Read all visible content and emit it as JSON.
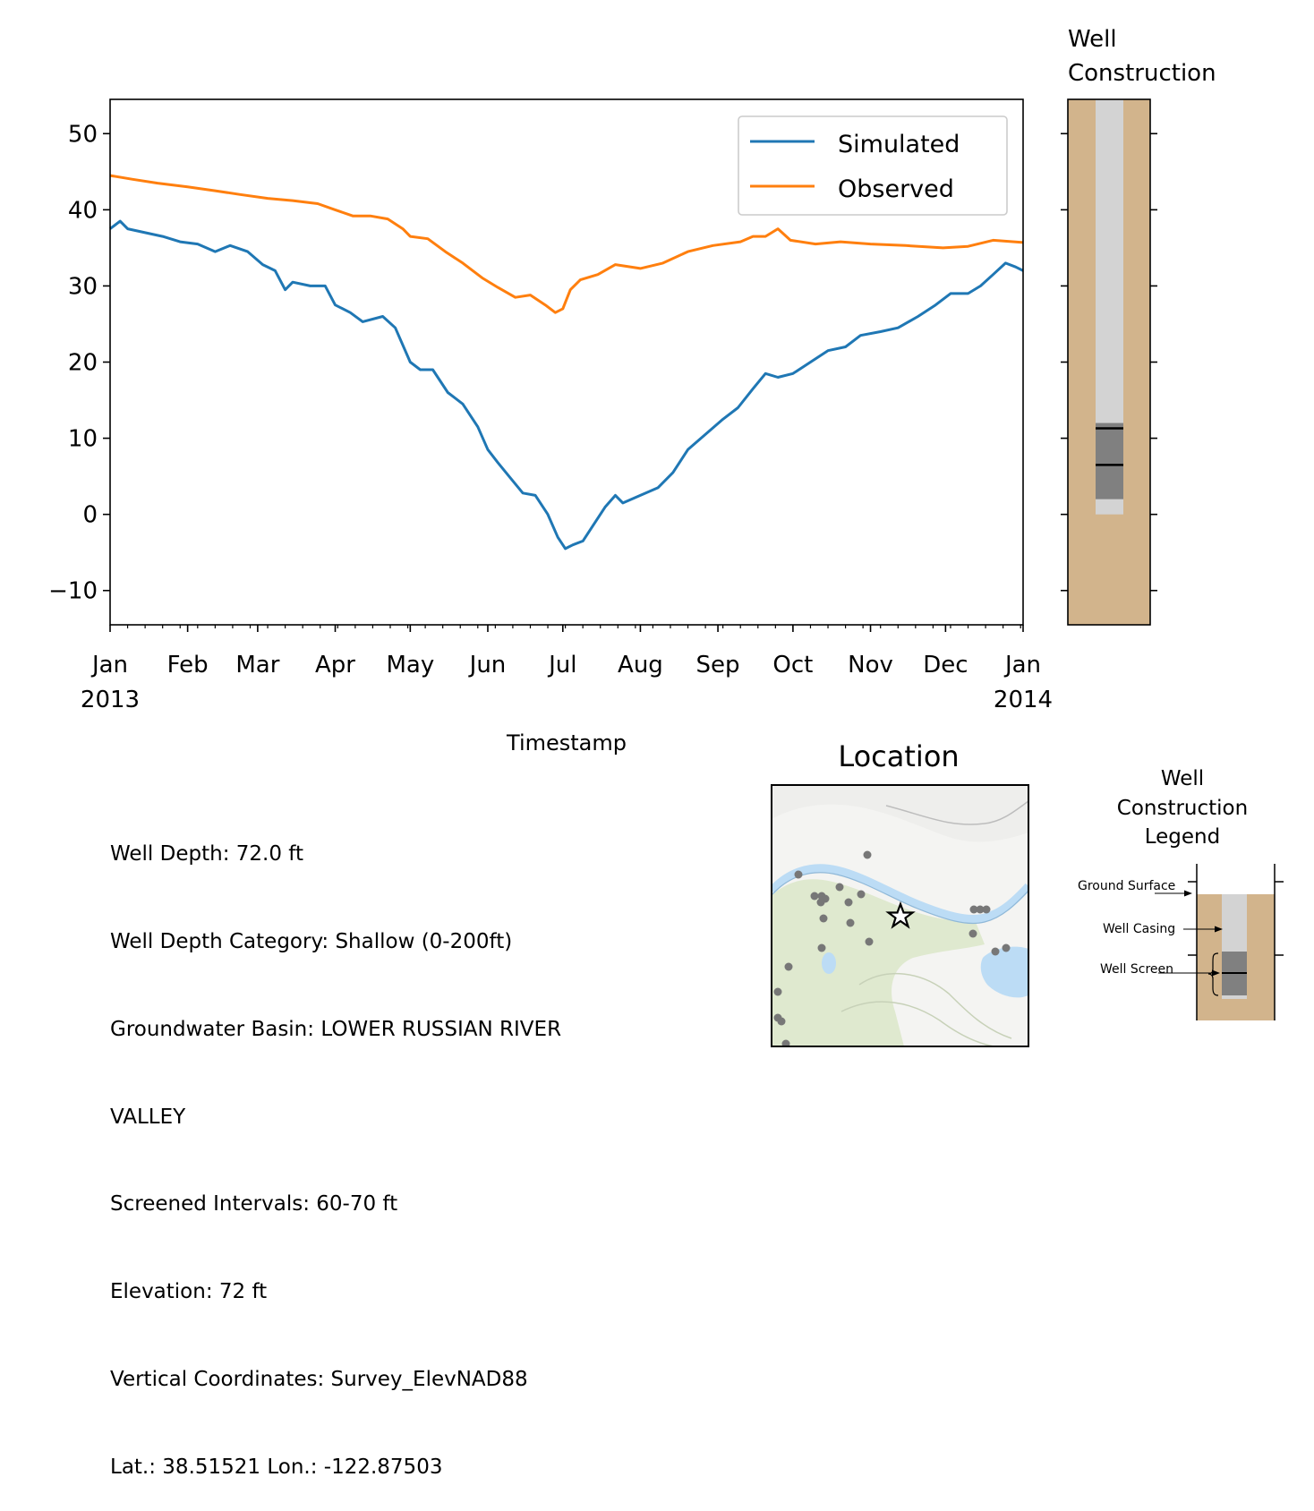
{
  "chart_data": [
    {
      "type": "line",
      "title": "",
      "xlabel": "Timestamp",
      "ylabel": "",
      "x_range": [
        "2013-01-01",
        "2014-01-01"
      ],
      "ylim": [
        -14.5,
        54.5
      ],
      "y_ticks": [
        -10,
        0,
        10,
        20,
        30,
        40,
        50
      ],
      "y_tick_labels": [
        "−10",
        "0",
        "10",
        "20",
        "30",
        "40",
        "50"
      ],
      "x_ticks": [
        {
          "date": "2013-01-01",
          "label": "Jan",
          "sub": "2013"
        },
        {
          "date": "2013-02-01",
          "label": "Feb",
          "sub": ""
        },
        {
          "date": "2013-03-01",
          "label": "Mar",
          "sub": ""
        },
        {
          "date": "2013-04-01",
          "label": "Apr",
          "sub": ""
        },
        {
          "date": "2013-05-01",
          "label": "May",
          "sub": ""
        },
        {
          "date": "2013-06-01",
          "label": "Jun",
          "sub": ""
        },
        {
          "date": "2013-07-01",
          "label": "Jul",
          "sub": ""
        },
        {
          "date": "2013-08-01",
          "label": "Aug",
          "sub": ""
        },
        {
          "date": "2013-09-01",
          "label": "Sep",
          "sub": ""
        },
        {
          "date": "2013-10-01",
          "label": "Oct",
          "sub": ""
        },
        {
          "date": "2013-11-01",
          "label": "Nov",
          "sub": ""
        },
        {
          "date": "2013-12-01",
          "label": "Dec",
          "sub": ""
        },
        {
          "date": "2014-01-01",
          "label": "Jan",
          "sub": "2014"
        }
      ],
      "grid": false,
      "legend_position": "top-right",
      "series": [
        {
          "name": "Simulated",
          "color": "#1f77b4",
          "points": [
            [
              "2013-01-01",
              37.5
            ],
            [
              "2013-01-05",
              38.5
            ],
            [
              "2013-01-08",
              37.5
            ],
            [
              "2013-01-15",
              37.0
            ],
            [
              "2013-01-22",
              36.5
            ],
            [
              "2013-01-29",
              35.8
            ],
            [
              "2013-02-05",
              35.5
            ],
            [
              "2013-02-12",
              34.5
            ],
            [
              "2013-02-18",
              35.3
            ],
            [
              "2013-02-25",
              34.5
            ],
            [
              "2013-03-03",
              32.8
            ],
            [
              "2013-03-08",
              32.0
            ],
            [
              "2013-03-12",
              29.5
            ],
            [
              "2013-03-15",
              30.5
            ],
            [
              "2013-03-22",
              30.0
            ],
            [
              "2013-03-28",
              30.0
            ],
            [
              "2013-04-01",
              27.5
            ],
            [
              "2013-04-07",
              26.5
            ],
            [
              "2013-04-12",
              25.3
            ],
            [
              "2013-04-20",
              26.0
            ],
            [
              "2013-04-25",
              24.5
            ],
            [
              "2013-05-01",
              20.0
            ],
            [
              "2013-05-05",
              19.0
            ],
            [
              "2013-05-10",
              19.0
            ],
            [
              "2013-05-16",
              16.0
            ],
            [
              "2013-05-22",
              14.5
            ],
            [
              "2013-05-28",
              11.5
            ],
            [
              "2013-06-01",
              8.5
            ],
            [
              "2013-06-05",
              6.8
            ],
            [
              "2013-06-10",
              4.8
            ],
            [
              "2013-06-15",
              2.8
            ],
            [
              "2013-06-20",
              2.5
            ],
            [
              "2013-06-25",
              0.0
            ],
            [
              "2013-06-29",
              -3.0
            ],
            [
              "2013-07-02",
              -4.5
            ],
            [
              "2013-07-05",
              -4.0
            ],
            [
              "2013-07-09",
              -3.5
            ],
            [
              "2013-07-13",
              -1.5
            ],
            [
              "2013-07-18",
              1.0
            ],
            [
              "2013-07-22",
              2.5
            ],
            [
              "2013-07-25",
              1.5
            ],
            [
              "2013-08-01",
              2.5
            ],
            [
              "2013-08-08",
              3.5
            ],
            [
              "2013-08-14",
              5.5
            ],
            [
              "2013-08-20",
              8.5
            ],
            [
              "2013-08-27",
              10.5
            ],
            [
              "2013-09-03",
              12.5
            ],
            [
              "2013-09-09",
              14.0
            ],
            [
              "2013-09-15",
              16.5
            ],
            [
              "2013-09-20",
              18.5
            ],
            [
              "2013-09-25",
              18.0
            ],
            [
              "2013-10-01",
              18.5
            ],
            [
              "2013-10-08",
              20.0
            ],
            [
              "2013-10-15",
              21.5
            ],
            [
              "2013-10-22",
              22.0
            ],
            [
              "2013-10-28",
              23.5
            ],
            [
              "2013-11-05",
              24.0
            ],
            [
              "2013-11-12",
              24.5
            ],
            [
              "2013-11-20",
              26.0
            ],
            [
              "2013-11-27",
              27.5
            ],
            [
              "2013-12-03",
              29.0
            ],
            [
              "2013-12-10",
              29.0
            ],
            [
              "2013-12-15",
              30.0
            ],
            [
              "2013-12-20",
              31.5
            ],
            [
              "2013-12-25",
              33.0
            ],
            [
              "2013-12-29",
              32.5
            ],
            [
              "2014-01-01",
              32.0
            ]
          ]
        },
        {
          "name": "Observed",
          "color": "#ff7f0e",
          "points": [
            [
              "2013-01-01",
              44.5
            ],
            [
              "2013-01-10",
              44.0
            ],
            [
              "2013-01-20",
              43.5
            ],
            [
              "2013-02-01",
              43.0
            ],
            [
              "2013-02-12",
              42.5
            ],
            [
              "2013-02-22",
              42.0
            ],
            [
              "2013-03-05",
              41.5
            ],
            [
              "2013-03-15",
              41.2
            ],
            [
              "2013-03-25",
              40.8
            ],
            [
              "2013-04-01",
              40.0
            ],
            [
              "2013-04-08",
              39.2
            ],
            [
              "2013-04-15",
              39.2
            ],
            [
              "2013-04-22",
              38.8
            ],
            [
              "2013-04-28",
              37.5
            ],
            [
              "2013-05-01",
              36.5
            ],
            [
              "2013-05-08",
              36.2
            ],
            [
              "2013-05-15",
              34.5
            ],
            [
              "2013-05-22",
              33.0
            ],
            [
              "2013-05-30",
              31.0
            ],
            [
              "2013-06-05",
              29.8
            ],
            [
              "2013-06-12",
              28.5
            ],
            [
              "2013-06-18",
              28.8
            ],
            [
              "2013-06-24",
              27.5
            ],
            [
              "2013-06-28",
              26.5
            ],
            [
              "2013-07-01",
              27.0
            ],
            [
              "2013-07-04",
              29.5
            ],
            [
              "2013-07-08",
              30.8
            ],
            [
              "2013-07-15",
              31.5
            ],
            [
              "2013-07-22",
              32.8
            ],
            [
              "2013-08-01",
              32.3
            ],
            [
              "2013-08-10",
              33.0
            ],
            [
              "2013-08-20",
              34.5
            ],
            [
              "2013-08-30",
              35.3
            ],
            [
              "2013-09-10",
              35.8
            ],
            [
              "2013-09-15",
              36.5
            ],
            [
              "2013-09-20",
              36.5
            ],
            [
              "2013-09-25",
              37.5
            ],
            [
              "2013-09-30",
              36.0
            ],
            [
              "2013-10-10",
              35.5
            ],
            [
              "2013-10-20",
              35.8
            ],
            [
              "2013-11-01",
              35.5
            ],
            [
              "2013-11-15",
              35.3
            ],
            [
              "2013-11-30",
              35.0
            ],
            [
              "2013-12-10",
              35.2
            ],
            [
              "2013-12-20",
              36.0
            ],
            [
              "2014-01-01",
              35.7
            ]
          ]
        }
      ]
    },
    {
      "type": "well-construction",
      "title": "Well\nConstruction",
      "title_lines": [
        "Well",
        "Construction"
      ],
      "ylim": [
        -14.5,
        54.5
      ],
      "ground_surface": 54.5,
      "casing_bottom": 0.0,
      "screen_top": 12.0,
      "screen_bottom": 2.0,
      "screen_marks": [
        11.3,
        6.5
      ],
      "colors": {
        "soil": "#d2b48c",
        "casing": "#d3d3d3",
        "screen": "#808080",
        "mark": "#000000"
      }
    }
  ],
  "info": {
    "lines": [
      "Well Depth: 72.0 ft",
      "Well Depth Category: Shallow (0-200ft)",
      "Groundwater Basin: LOWER RUSSIAN RIVER",
      "VALLEY",
      "Screened Intervals: 60-70 ft",
      "Elevation: 72 ft",
      "Vertical Coordinates: Survey_ElevNAD88",
      "Lat.: 38.51521 Lon.: -122.87503"
    ]
  },
  "location": {
    "title": "Location",
    "colors": {
      "land": "#dfe9cf",
      "water": "#bcdcf5",
      "wells": "#777777",
      "star": "#ffffff"
    }
  },
  "legend_panel": {
    "title_lines": [
      "Well",
      "Construction",
      "Legend"
    ],
    "labels": {
      "ground_surface": "Ground Surface",
      "well_casing": "Well Casing",
      "well_screen": "Well Screen"
    }
  }
}
